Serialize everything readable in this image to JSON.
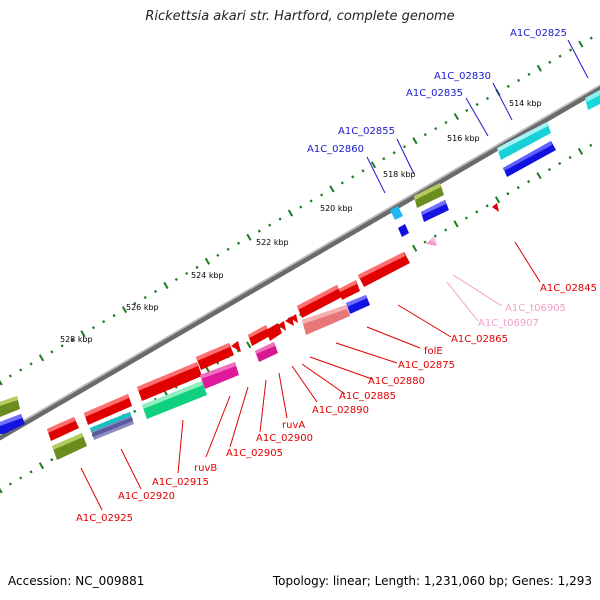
{
  "title": "Rickettsia akari str. Hartford, complete genome",
  "footer": {
    "accession": "Accession: NC_009881",
    "summary": "Topology: linear; Length: 1,231,060 bp; Genes: 1,293"
  },
  "colors": {
    "forward_label": "#1a1acc",
    "reverse_label": "#e00000",
    "trna_label": "#f0a0c8",
    "tick": "#1f7a1f",
    "backbone": "#8a8a8a"
  },
  "scale_labels": [
    "514 kbp",
    "516 kbp",
    "518 kbp",
    "520 kbp",
    "522 kbp",
    "524 kbp",
    "526 kbp",
    "528 kbp"
  ],
  "gene_labels": [
    "A1C_02825",
    "A1C_02830",
    "A1C_02835",
    "A1C_02855",
    "A1C_02860",
    "A1C_02845",
    "A1C_t06905",
    "A1C_t06907",
    "A1C_02865",
    "folE",
    "A1C_02875",
    "A1C_02880",
    "A1C_02885",
    "A1C_02890",
    "ruvA",
    "A1C_02900",
    "A1C_02905",
    "ruvB",
    "A1C_02915",
    "A1C_02920",
    "A1C_02925"
  ]
}
